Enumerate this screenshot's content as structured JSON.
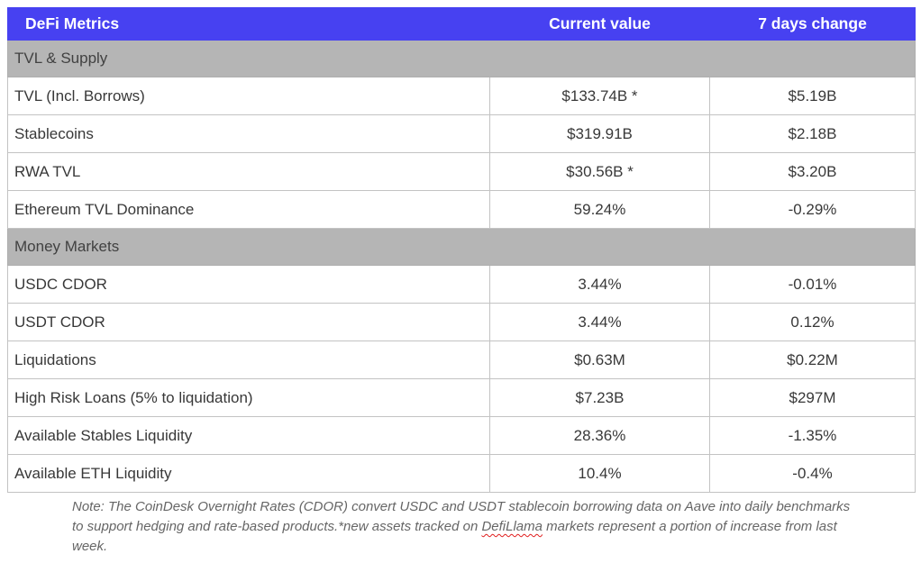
{
  "colors": {
    "header_bg": "#4741f1",
    "header_text": "#ffffff",
    "section_bg": "#b5b5b5",
    "row_text": "#383838",
    "grid_border": "#c3c3c3",
    "note_text": "#666666",
    "spellcheck_squiggle": "#e01e1e"
  },
  "chart_data": {
    "type": "table",
    "title": "DeFi Metrics",
    "columns": [
      "DeFi Metrics",
      "Current value",
      "7 days change"
    ],
    "sections": [
      {
        "title": "TVL & Supply",
        "rows": [
          {
            "metric": "TVL (Incl. Borrows)",
            "current_value": "$133.74B *",
            "change_7d": "$5.19B"
          },
          {
            "metric": "Stablecoins",
            "current_value": "$319.91B",
            "change_7d": "$2.18B"
          },
          {
            "metric": "RWA TVL",
            "current_value": "$30.56B *",
            "change_7d": "$3.20B"
          },
          {
            "metric": "Ethereum TVL Dominance",
            "current_value": "59.24%",
            "change_7d": "-0.29%"
          }
        ]
      },
      {
        "title": "Money Markets",
        "rows": [
          {
            "metric": "USDC CDOR",
            "current_value": "3.44%",
            "change_7d": "-0.01%"
          },
          {
            "metric": "USDT CDOR",
            "current_value": "3.44%",
            "change_7d": "0.12%"
          },
          {
            "metric": "Liquidations",
            "current_value": "$0.63M",
            "change_7d": "$0.22M"
          },
          {
            "metric": "High Risk Loans (5% to liquidation)",
            "current_value": "$7.23B",
            "change_7d": "$297M"
          },
          {
            "metric": "Available Stables Liquidity",
            "current_value": "28.36%",
            "change_7d": "-1.35%"
          },
          {
            "metric": "Available ETH Liquidity",
            "current_value": "10.4%",
            "change_7d": "-0.4%"
          }
        ]
      }
    ],
    "note": {
      "part1": "Note: The CoinDesk Overnight Rates (CDOR) convert USDC and USDT stablecoin borrowing data on Aave into daily benchmarks to support hedging and rate-based products.*new assets tracked on ",
      "flagged_word": "DefiLlama",
      "part2": " markets represent a portion of increase from last week."
    }
  }
}
